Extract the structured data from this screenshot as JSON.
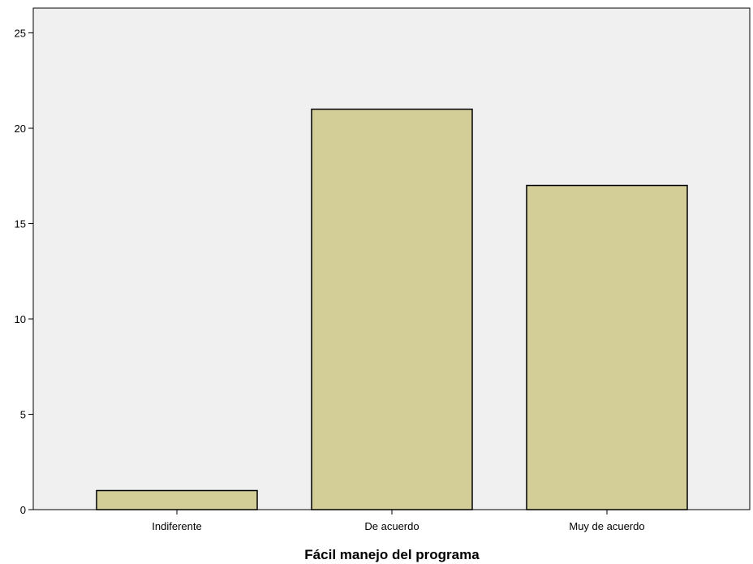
{
  "chart_data": {
    "type": "bar",
    "title": "",
    "xlabel": "Fácil manejo del programa",
    "ylabel": "",
    "categories": [
      "Indiferente",
      "De acuerdo",
      "Muy de acuerdo"
    ],
    "values": [
      1,
      21,
      17
    ],
    "ylim": [
      0,
      26.3
    ],
    "yticks": [
      0,
      5,
      10,
      15,
      20,
      25
    ],
    "grid": false,
    "legend": "none",
    "colors": {
      "bar_fill": "#d3cd97",
      "bar_stroke": "#000000",
      "plot_background": "#f0f0f0",
      "page_background": "#ffffff",
      "axis": "#000000"
    }
  }
}
